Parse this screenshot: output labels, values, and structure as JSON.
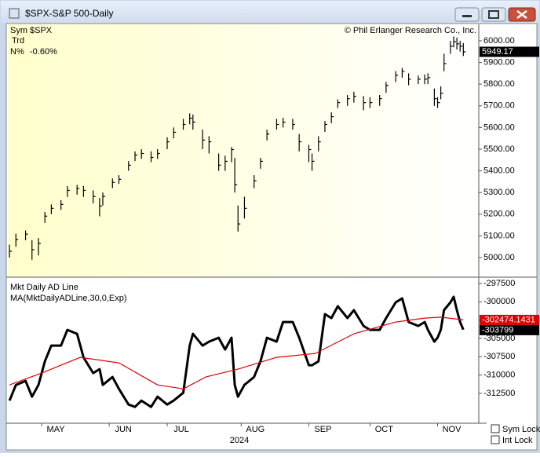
{
  "window": {
    "title": "$SPX-S&P 500-Daily"
  },
  "info": {
    "sym_label": "Sym",
    "sym": "$SPX",
    "trd_label": "Trd",
    "n_label": "N%",
    "n_value": "-0.60%"
  },
  "copyright": "© Phil Erlanger Research Co., Inc.",
  "controls": {
    "sym_lock": "Sym Lock",
    "int_lock": "Int Lock"
  },
  "chart_data": [
    {
      "type": "ohlc",
      "color": "#000000",
      "x": [
        0,
        2,
        5,
        7,
        9,
        11,
        13,
        16,
        18,
        21,
        23,
        26,
        28,
        29,
        32,
        34,
        37,
        39,
        41,
        44,
        46,
        49,
        51,
        54,
        56,
        57,
        60,
        62,
        65,
        67,
        69,
        70,
        71,
        73,
        76,
        78,
        80,
        83,
        85,
        88,
        90,
        93,
        94,
        96,
        98,
        100,
        102,
        105,
        107,
        110,
        112,
        115,
        117,
        120,
        122,
        124,
        127,
        129,
        130,
        132,
        133,
        134,
        135,
        137,
        138,
        139,
        140,
        141
      ],
      "high": [
        5060,
        5110,
        5125,
        5080,
        5090,
        5210,
        5245,
        5265,
        5330,
        5335,
        5330,
        5310,
        5275,
        5300,
        5365,
        5380,
        5445,
        5490,
        5500,
        5490,
        5500,
        5555,
        5600,
        5640,
        5665,
        5660,
        5590,
        5560,
        5480,
        5470,
        5510,
        5460,
        5240,
        5280,
        5380,
        5460,
        5590,
        5640,
        5645,
        5640,
        5570,
        5520,
        5480,
        5560,
        5630,
        5670,
        5730,
        5750,
        5765,
        5745,
        5740,
        5750,
        5810,
        5860,
        5875,
        5850,
        5840,
        5845,
        5850,
        5780,
        5740,
        5790,
        5940,
        6000,
        6020,
        6015,
        6000,
        5990
      ],
      "low": [
        5000,
        5050,
        5080,
        4990,
        5010,
        5160,
        5200,
        5220,
        5280,
        5290,
        5280,
        5250,
        5190,
        5240,
        5320,
        5340,
        5400,
        5445,
        5455,
        5440,
        5455,
        5500,
        5550,
        5590,
        5615,
        5590,
        5500,
        5480,
        5400,
        5400,
        5440,
        5300,
        5120,
        5180,
        5320,
        5410,
        5540,
        5590,
        5600,
        5590,
        5490,
        5440,
        5400,
        5490,
        5580,
        5620,
        5690,
        5700,
        5715,
        5680,
        5690,
        5700,
        5760,
        5810,
        5830,
        5795,
        5800,
        5800,
        5800,
        5700,
        5690,
        5730,
        5860,
        5940,
        5970,
        5960,
        5950,
        5930
      ],
      "close": [
        5029,
        5083,
        5108,
        5036,
        5065,
        5191,
        5227,
        5245,
        5310,
        5318,
        5310,
        5282,
        5238,
        5282,
        5347,
        5361,
        5426,
        5473,
        5480,
        5462,
        5480,
        5534,
        5578,
        5614,
        5643,
        5625,
        5542,
        5534,
        5426,
        5444,
        5498,
        5336,
        5155,
        5227,
        5354,
        5444,
        5570,
        5614,
        5625,
        5614,
        5534,
        5498,
        5444,
        5534,
        5614,
        5650,
        5715,
        5733,
        5744,
        5715,
        5715,
        5733,
        5794,
        5841,
        5859,
        5823,
        5823,
        5823,
        5830,
        5733,
        5715,
        5758,
        5895,
        5975,
        5996,
        5986,
        5975,
        5949.17
      ],
      "xlim": [
        -0.5,
        145.8
      ],
      "ylim": [
        4913,
        6076
      ],
      "yticks": [
        {
          "value": 5000,
          "label": "5000.00"
        },
        {
          "value": 5100,
          "label": "5100.00"
        },
        {
          "value": 5200,
          "label": "5200.00"
        },
        {
          "value": 5300,
          "label": "5300.00"
        },
        {
          "value": 5400,
          "label": "5400.00"
        },
        {
          "value": 5500,
          "label": "5500.00"
        },
        {
          "value": 5600,
          "label": "5600.00"
        },
        {
          "value": 5700,
          "label": "5700.00"
        },
        {
          "value": 5800,
          "label": "5800.00"
        },
        {
          "value": 5900,
          "label": "5900.00"
        },
        {
          "value": 6000,
          "label": "6000.00"
        }
      ]
    },
    {
      "type": "line",
      "series": [
        {
          "name": "Mkt Daily AD Line",
          "color": "#000000",
          "x": [
            0,
            2,
            5,
            7,
            9,
            11,
            13,
            16,
            18,
            21,
            23,
            26,
            28,
            29,
            32,
            34,
            37,
            39,
            41,
            44,
            46,
            49,
            51,
            54,
            56,
            57,
            60,
            62,
            65,
            67,
            69,
            70,
            71,
            73,
            76,
            78,
            80,
            83,
            85,
            88,
            90,
            93,
            94,
            96,
            98,
            100,
            102,
            105,
            107,
            110,
            112,
            115,
            117,
            120,
            122,
            124,
            127,
            129,
            130,
            132,
            133,
            134,
            135,
            137,
            138,
            139,
            140,
            141
          ],
          "values": [
            -313488,
            -311342,
            -310805,
            -312951,
            -311342,
            -308122,
            -305977,
            -305977,
            -303831,
            -304367,
            -307586,
            -309732,
            -309195,
            -311342,
            -310269,
            -311878,
            -314024,
            -314346,
            -313488,
            -314346,
            -312951,
            -314024,
            -313488,
            -312414,
            -305977,
            -304367,
            -305977,
            -305440,
            -304904,
            -306513,
            -304904,
            -311342,
            -312951,
            -311342,
            -310269,
            -308122,
            -304904,
            -305440,
            -302758,
            -302758,
            -304904,
            -308659,
            -308659,
            -308122,
            -301685,
            -302222,
            -300612,
            -302222,
            -301149,
            -303294,
            -303831,
            -303831,
            -302222,
            -300076,
            -299539,
            -302758,
            -303294,
            -302758,
            -303831,
            -305440,
            -304904,
            -303831,
            -301149,
            -300076,
            -299325,
            -301149,
            -302758,
            -303799
          ]
        },
        {
          "name": "MA(MktDailyADLine,30,0,Exp)",
          "color": "#e00000",
          "x": [
            0,
            10,
            22,
            34,
            46,
            54,
            61,
            71,
            83,
            95,
            107,
            120,
            129,
            134,
            141
          ],
          "values": [
            -311342,
            -309732,
            -307586,
            -308337,
            -311342,
            -311878,
            -310269,
            -309195,
            -307586,
            -307049,
            -304367,
            -302758,
            -302222,
            -302100,
            -302474.1431
          ]
        }
      ],
      "xlim": [
        -0.5,
        145.8
      ],
      "ylim": [
        -316470,
        -296964
      ],
      "yticks": [
        -297500,
        -300000,
        -302500,
        -305000,
        -307500,
        -310000,
        -312500
      ],
      "xticks": [
        {
          "value": 10,
          "label": "MAY"
        },
        {
          "value": 31,
          "label": "JUN"
        },
        {
          "value": 49,
          "label": "JUL"
        },
        {
          "value": 72,
          "label": "AUG"
        },
        {
          "value": 93,
          "label": "SEP"
        },
        {
          "value": 112,
          "label": "OCT"
        },
        {
          "value": 133,
          "label": "NOV"
        }
      ],
      "xlabel": "2024"
    }
  ]
}
